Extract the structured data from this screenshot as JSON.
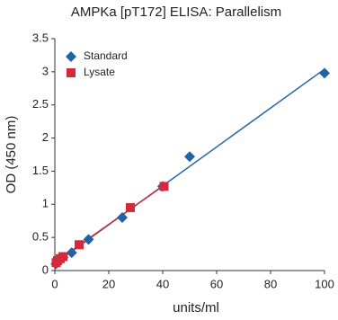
{
  "chart_data": {
    "type": "scatter",
    "title": "AMPKa [pT172] ELISA: Parallelism",
    "x_label": "units/ml",
    "y_label": "OD (450 nm)",
    "xlim": [
      0,
      100
    ],
    "xticks": [
      0,
      20,
      40,
      60,
      80,
      100
    ],
    "ylim": [
      0,
      3.5
    ],
    "yticks": [
      0,
      0.5,
      1,
      1.5,
      2,
      2.5,
      3,
      3.5
    ],
    "legend": "upper-left",
    "fit_lines": true,
    "series": [
      {
        "name": "Standard",
        "color": "#1f64a8",
        "marker": "diamond",
        "x": [
          100,
          50,
          40,
          25,
          12.5,
          6.25,
          3.125,
          1.56,
          0.78,
          0.39
        ],
        "values": [
          2.98,
          1.72,
          1.27,
          0.8,
          0.47,
          0.27,
          0.2,
          0.15,
          0.12,
          0.1
        ]
      },
      {
        "name": "Lysate",
        "color": "#d42a3a",
        "marker": "square",
        "x": [
          40.5,
          28,
          9,
          3,
          2,
          1,
          0.5
        ],
        "values": [
          1.27,
          0.95,
          0.39,
          0.21,
          0.18,
          0.15,
          0.12
        ]
      }
    ]
  }
}
